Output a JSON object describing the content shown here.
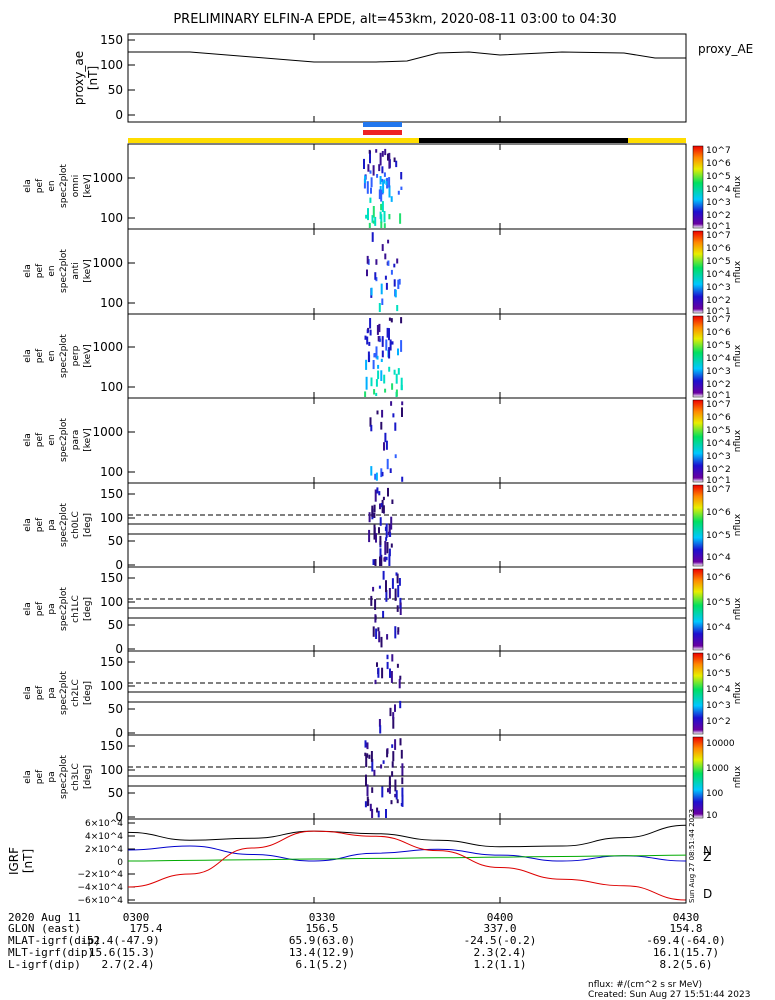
{
  "title": "PRELIMINARY ELFIN-A EPDE, alt=453km, 2020-08-11 03:00 to 04:30",
  "chart_data": [
    {
      "id": "proxy_ae",
      "type": "line",
      "ylabel": "proxy_ae [nT]",
      "ylim": [
        0,
        160
      ],
      "yticks": [
        "150",
        "100",
        "50",
        "0"
      ],
      "series": [
        {
          "name": "proxy_AE",
          "x_min": [
            0,
            10,
            20,
            30,
            40,
            45,
            50,
            55,
            60,
            70,
            80,
            85,
            90
          ],
          "values": [
            126,
            126,
            116,
            106,
            106,
            108,
            124,
            126,
            120,
            126,
            124,
            114,
            114
          ]
        }
      ]
    },
    {
      "id": "ela_pef_en_spec2plot_omni",
      "type": "heatmap",
      "ylabel": "ela pef en spec2plot omni [keV]",
      "yscale": "log",
      "yticks": [
        "1000",
        "100"
      ],
      "colorbar": {
        "label": "nflux",
        "ticks": [
          "10^7",
          "10^6",
          "10^5",
          "10^4",
          "10^3",
          "10^2",
          "10^1"
        ]
      }
    },
    {
      "id": "ela_pef_en_spec2plot_anti",
      "type": "heatmap",
      "ylabel": "ela pef en spec2plot anti [keV]",
      "yscale": "log",
      "yticks": [
        "1000",
        "100"
      ],
      "colorbar": {
        "label": "nflux",
        "ticks": [
          "10^7",
          "10^6",
          "10^5",
          "10^4",
          "10^3",
          "10^2",
          "10^1"
        ]
      }
    },
    {
      "id": "ela_pef_en_spec2plot_perp",
      "type": "heatmap",
      "ylabel": "ela pef en spec2plot perp [keV]",
      "yscale": "log",
      "yticks": [
        "1000",
        "100"
      ],
      "colorbar": {
        "label": "nflux",
        "ticks": [
          "10^7",
          "10^6",
          "10^5",
          "10^4",
          "10^3",
          "10^2",
          "10^1"
        ]
      }
    },
    {
      "id": "ela_pef_en_spec2plot_para",
      "type": "heatmap",
      "ylabel": "ela pef en spec2plot para [keV]",
      "yscale": "log",
      "yticks": [
        "1000",
        "100"
      ],
      "colorbar": {
        "label": "nflux",
        "ticks": [
          "10^7",
          "10^6",
          "10^5",
          "10^4",
          "10^3",
          "10^2",
          "10^1"
        ]
      }
    },
    {
      "id": "ela_pef_pa_spec2plot_ch0LC",
      "type": "heatmap",
      "ylabel": "ela pef pa spec2plot ch0LC [deg]",
      "ylim": [
        0,
        180
      ],
      "yticks": [
        "150",
        "100",
        "50",
        "0"
      ],
      "colorbar": {
        "label": "nflux",
        "ticks": [
          "10^7",
          "10^6",
          "10^5",
          "10^4"
        ]
      }
    },
    {
      "id": "ela_pef_pa_spec2plot_ch1LC",
      "type": "heatmap",
      "ylabel": "ela pef pa spec2plot ch1LC [deg]",
      "ylim": [
        0,
        180
      ],
      "yticks": [
        "150",
        "100",
        "50",
        "0"
      ],
      "colorbar": {
        "label": "nflux",
        "ticks": [
          "10^6",
          "10^5",
          "10^4"
        ]
      }
    },
    {
      "id": "ela_pef_pa_spec2plot_ch2LC",
      "type": "heatmap",
      "ylabel": "ela pef pa spec2plot ch2LC [deg]",
      "ylim": [
        0,
        180
      ],
      "yticks": [
        "150",
        "100",
        "50",
        "0"
      ],
      "colorbar": {
        "label": "nflux",
        "ticks": [
          "10^6",
          "10^5",
          "10^4",
          "10^3",
          "10^2"
        ]
      }
    },
    {
      "id": "ela_pef_pa_spec2plot_ch3LC",
      "type": "heatmap",
      "ylabel": "ela pef pa spec2plot ch3LC [deg]",
      "ylim": [
        0,
        180
      ],
      "yticks": [
        "150",
        "100",
        "50",
        "0"
      ],
      "colorbar": {
        "label": "nflux",
        "ticks": [
          "10000",
          "1000",
          "100",
          "10"
        ]
      }
    },
    {
      "id": "igrf",
      "type": "line",
      "ylabel": "IGRF [nT]",
      "ylim": [
        -65000,
        65000
      ],
      "yticks": [
        "6×10^4",
        "4×10^4",
        "2×10^4",
        "0",
        "−2×10^4",
        "−4×10^4",
        "−6×10^4"
      ],
      "x_min": [
        0,
        10,
        20,
        30,
        40,
        50,
        60,
        70,
        80,
        90
      ],
      "series": [
        {
          "name": "",
          "color": "#000000",
          "values": [
            44000,
            32000,
            35000,
            46000,
            42000,
            32000,
            22000,
            23000,
            36000,
            55000
          ]
        },
        {
          "name": "",
          "color": "#0000cc",
          "values": [
            17000,
            23000,
            10000,
            0,
            12000,
            18000,
            9000,
            0,
            8000,
            0
          ]
        },
        {
          "name": "",
          "color": "#00aa00",
          "values": [
            0,
            1000,
            2000,
            3000,
            4000,
            5000,
            6000,
            7000,
            8000,
            9000
          ]
        },
        {
          "name": "D",
          "color": "#dd0000",
          "values": [
            -40000,
            -20000,
            20000,
            46000,
            38000,
            16000,
            -10000,
            -28000,
            -38000,
            -60000
          ]
        }
      ],
      "side_labels": [
        "N",
        "Z",
        "D"
      ]
    }
  ],
  "x_axis": {
    "tick_labels": [
      "0300",
      "0330",
      "0400",
      "0430"
    ],
    "date_label": "2020 Aug 11",
    "rows": [
      {
        "label": "GLON (east)",
        "values": [
          "175.4",
          "156.5",
          "337.0",
          "154.8"
        ]
      },
      {
        "label": "MLAT-igrf(dip)",
        "values": [
          "-52.4(-47.9)",
          "65.9(63.0)",
          "-24.5(-0.2)",
          "-69.4(-64.0)"
        ]
      },
      {
        "label": "MLT-igrf(dip)",
        "values": [
          "15.6(15.3)",
          "13.4(12.9)",
          "2.3(2.4)",
          "16.1(15.7)"
        ]
      },
      {
        "label": "L-igrf(dip)",
        "values": [
          "2.7(2.4)",
          "6.1(5.2)",
          "1.2(1.1)",
          "8.2(5.6)"
        ]
      }
    ]
  },
  "footer": {
    "units": "nflux: #/(cm^2 s sr MeV)",
    "created": "Created: Sun Aug 27 15:51:44 2023",
    "side_stamp": "Sun Aug 27 08:51:44 2023"
  },
  "colors": {
    "yellow_bar": "#ffdd00",
    "black_bar": "#000000",
    "blue_bar": "#2277ee",
    "red_bar": "#ee2222"
  }
}
